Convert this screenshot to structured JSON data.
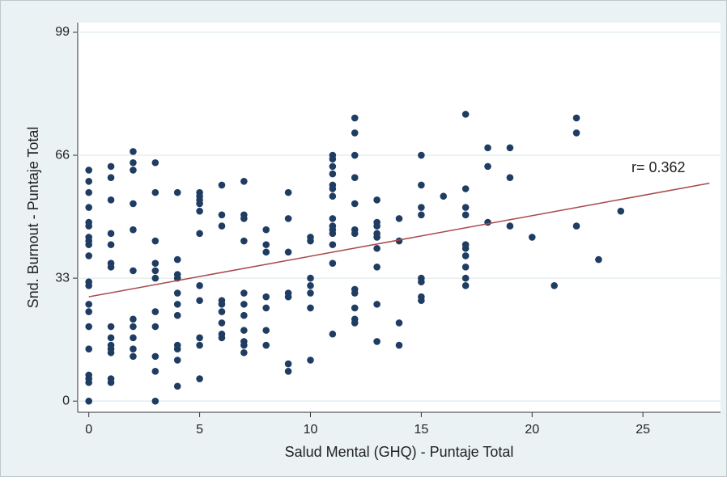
{
  "chart_data": {
    "type": "scatter",
    "xlabel": "Salud Mental (GHQ) - Puntaje Total",
    "ylabel": "Snd. Burnout - Puntaje Total",
    "annotation": "r= 0.362",
    "xlim": [
      -0.5,
      28.5
    ],
    "ylim": [
      -3,
      101.6
    ],
    "xticks": [
      0,
      5,
      10,
      15,
      20,
      25
    ],
    "yticks": [
      0,
      33,
      66,
      99
    ],
    "grid": true,
    "color": "#1f3d63",
    "fit": {
      "color": "#a8484b",
      "x": [
        0,
        28
      ],
      "y": [
        28,
        58.5
      ]
    },
    "x": [
      0,
      0,
      0,
      0,
      0,
      0,
      0,
      0,
      0,
      0,
      0,
      0,
      0,
      0,
      0,
      0,
      0,
      0,
      0,
      0,
      1,
      1,
      1,
      1,
      1,
      1,
      1,
      1,
      1,
      1,
      1,
      1,
      1,
      1,
      2,
      2,
      2,
      2,
      2,
      2,
      2,
      2,
      2,
      2,
      2,
      3,
      3,
      3,
      3,
      3,
      3,
      3,
      3,
      3,
      3,
      3,
      4,
      4,
      4,
      4,
      4,
      4,
      4,
      4,
      4,
      4,
      4,
      5,
      5,
      5,
      5,
      5,
      5,
      5,
      5,
      5,
      5,
      5,
      6,
      6,
      6,
      6,
      6,
      6,
      6,
      6,
      6,
      7,
      7,
      7,
      7,
      7,
      7,
      7,
      7,
      7,
      7,
      7,
      8,
      8,
      8,
      8,
      8,
      8,
      8,
      9,
      9,
      9,
      9,
      9,
      9,
      9,
      10,
      10,
      10,
      10,
      10,
      10,
      10,
      11,
      11,
      11,
      11,
      11,
      11,
      11,
      11,
      11,
      11,
      11,
      11,
      11,
      11,
      12,
      12,
      12,
      12,
      12,
      12,
      12,
      12,
      12,
      12,
      12,
      12,
      13,
      13,
      13,
      13,
      13,
      13,
      13,
      13,
      13,
      14,
      14,
      14,
      14,
      15,
      15,
      15,
      15,
      15,
      15,
      15,
      15,
      16,
      17,
      17,
      17,
      17,
      17,
      17,
      17,
      17,
      17,
      17,
      18,
      18,
      18,
      19,
      19,
      19,
      20,
      21,
      22,
      22,
      22,
      23,
      24
    ],
    "y": [
      62,
      59,
      56,
      52,
      48,
      47,
      44,
      43,
      42,
      39,
      32,
      31,
      26,
      24,
      20,
      14,
      7,
      6,
      5,
      0,
      63,
      60,
      54,
      45,
      42,
      37,
      36,
      20,
      17,
      15,
      14,
      13,
      6,
      5,
      67,
      64,
      62,
      53,
      46,
      35,
      22,
      20,
      17,
      14,
      12,
      64,
      56,
      43,
      37,
      35,
      33,
      24,
      20,
      12,
      8,
      0,
      56,
      38,
      34,
      33,
      29,
      26,
      23,
      15,
      14,
      11,
      4,
      56,
      55,
      54,
      53,
      51,
      45,
      31,
      27,
      17,
      15,
      6,
      58,
      50,
      47,
      27,
      26,
      24,
      21,
      18,
      17,
      59,
      50,
      49,
      43,
      29,
      26,
      23,
      19,
      16,
      15,
      13,
      46,
      42,
      40,
      28,
      25,
      19,
      15,
      56,
      49,
      40,
      29,
      28,
      10,
      8,
      44,
      43,
      33,
      31,
      29,
      25,
      11,
      66,
      65,
      63,
      61,
      58,
      57,
      55,
      49,
      47,
      46,
      45,
      42,
      37,
      18,
      76,
      72,
      66,
      60,
      53,
      46,
      45,
      30,
      29,
      25,
      22,
      21,
      54,
      48,
      47,
      45,
      44,
      41,
      36,
      26,
      16,
      49,
      43,
      21,
      15,
      66,
      58,
      52,
      50,
      33,
      32,
      28,
      27,
      55,
      77,
      57,
      52,
      50,
      42,
      41,
      39,
      36,
      33,
      31,
      68,
      63,
      48,
      68,
      60,
      47,
      44,
      31,
      76,
      72,
      47,
      38,
      51
    ]
  }
}
